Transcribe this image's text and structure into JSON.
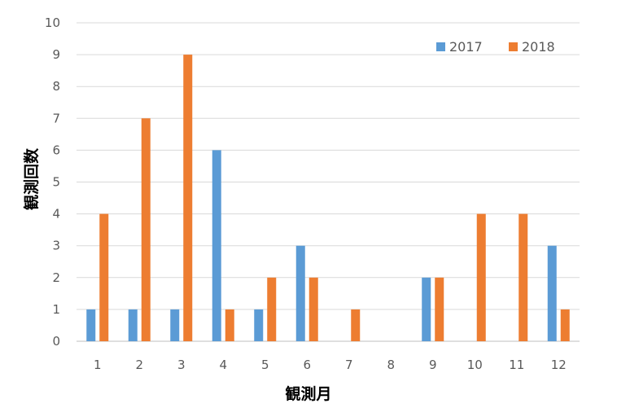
{
  "chart_data": {
    "type": "bar",
    "title": "",
    "xlabel": "観測月",
    "ylabel": "観測回数",
    "categories": [
      "1",
      "2",
      "3",
      "4",
      "5",
      "6",
      "7",
      "8",
      "9",
      "10",
      "11",
      "12"
    ],
    "series": [
      {
        "name": "2017",
        "color": "#5B9BD5",
        "values": [
          1,
          1,
          1,
          6,
          1,
          3,
          0,
          0,
          2,
          0,
          0,
          3
        ]
      },
      {
        "name": "2018",
        "color": "#ED7D31",
        "values": [
          4,
          7,
          9,
          1,
          2,
          2,
          1,
          0,
          2,
          4,
          4,
          1
        ]
      }
    ],
    "ylim": [
      0,
      10
    ],
    "yticks": [
      "0",
      "1",
      "2",
      "3",
      "4",
      "5",
      "6",
      "7",
      "8",
      "9",
      "10"
    ],
    "grid": true,
    "legend_position": "top-right",
    "gridline_color": "#D9D9D9"
  }
}
